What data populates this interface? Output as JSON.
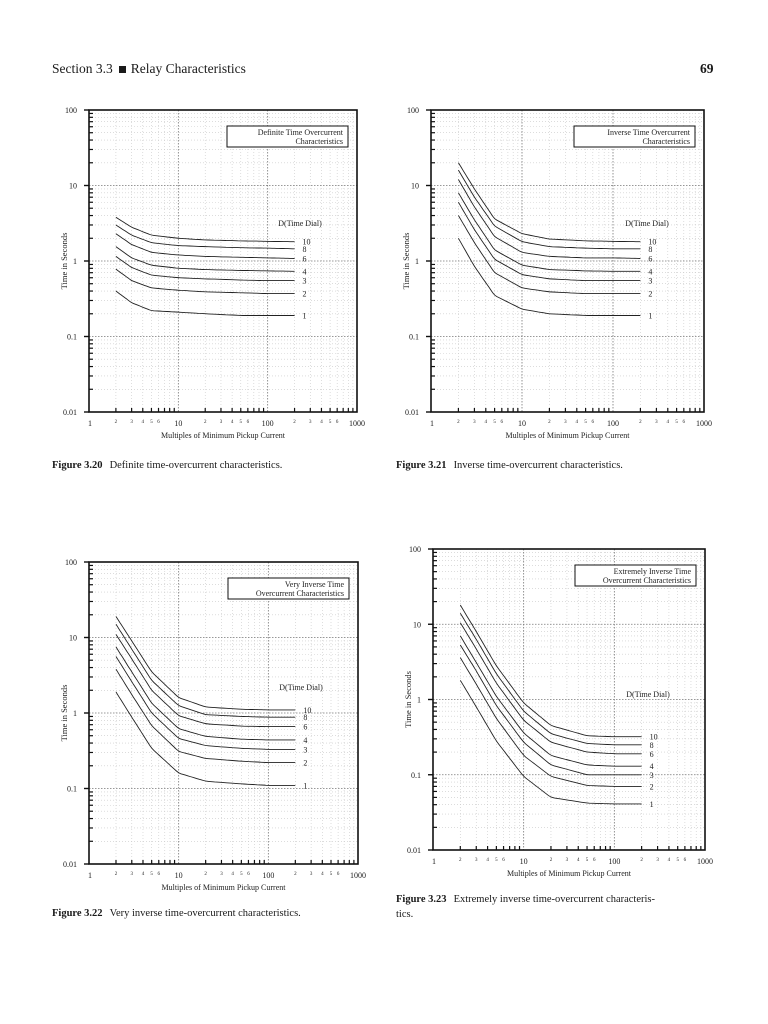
{
  "page": {
    "section": "Section 3.3",
    "section_title": "Relay Characteristics",
    "page_number": "69"
  },
  "captions": [
    {
      "label": "Figure 3.20",
      "text": "Definite time-overcurrent characteristics."
    },
    {
      "label": "Figure 3.21",
      "text": "Inverse time-overcurrent characteristics."
    },
    {
      "label": "Figure 3.22",
      "text": "Very inverse time-overcurrent characteristics."
    },
    {
      "label": "Figure 3.23",
      "text": "Extremely inverse time-overcurrent characteris-",
      "text2": "tics."
    }
  ],
  "chart_data": [
    {
      "type": "line",
      "title": "Definite Time Overcurrent Characteristics",
      "title_lines": [
        "Definite Time Overcurrent",
        "Characteristics"
      ],
      "xlabel": "Multiples of Minimum Pickup Current",
      "ylabel": "Time in Seconds",
      "xscale": "log",
      "yscale": "log",
      "xlim": [
        1,
        1000
      ],
      "ylim": [
        0.01,
        100
      ],
      "x_tick_labels": [
        "1",
        "10",
        "100",
        "1000"
      ],
      "x_minor_labels": [
        "2",
        "3",
        "4",
        "5",
        "6"
      ],
      "y_tick_labels": [
        "0.01",
        "0.1",
        "1",
        "10",
        "100"
      ],
      "grid": true,
      "legend_title": "D(Time Dial)",
      "x": [
        2,
        3,
        5,
        10,
        20,
        50,
        100,
        200
      ],
      "series": [
        {
          "name": "10",
          "values": [
            3.8,
            2.8,
            2.2,
            2.0,
            1.9,
            1.85,
            1.82,
            1.8
          ]
        },
        {
          "name": "8",
          "values": [
            3.0,
            2.2,
            1.75,
            1.6,
            1.55,
            1.5,
            1.48,
            1.45
          ]
        },
        {
          "name": "6",
          "values": [
            2.3,
            1.65,
            1.3,
            1.2,
            1.15,
            1.12,
            1.1,
            1.08
          ]
        },
        {
          "name": "4",
          "values": [
            1.55,
            1.1,
            0.88,
            0.8,
            0.77,
            0.75,
            0.74,
            0.73
          ]
        },
        {
          "name": "3",
          "values": [
            1.15,
            0.82,
            0.65,
            0.6,
            0.58,
            0.56,
            0.55,
            0.55
          ]
        },
        {
          "name": "2",
          "values": [
            0.78,
            0.55,
            0.44,
            0.41,
            0.39,
            0.38,
            0.37,
            0.37
          ]
        },
        {
          "name": "1",
          "values": [
            0.4,
            0.28,
            0.22,
            0.21,
            0.2,
            0.19,
            0.19,
            0.19
          ]
        }
      ]
    },
    {
      "type": "line",
      "title": "Inverse Time Overcurrent Characteristics",
      "title_lines": [
        "Inverse Time Overcurrent",
        "Characteristics"
      ],
      "xlabel": "Multiples of Minimum Pickup Current",
      "ylabel": "Time in Seconds",
      "xscale": "log",
      "yscale": "log",
      "xlim": [
        1,
        1000
      ],
      "ylim": [
        0.01,
        100
      ],
      "x_tick_labels": [
        "1",
        "10",
        "100",
        "1000"
      ],
      "x_minor_labels": [
        "2",
        "3",
        "4",
        "5",
        "6"
      ],
      "y_tick_labels": [
        "0.01",
        "0.1",
        "1",
        "10",
        "100"
      ],
      "grid": true,
      "legend_title": "D(Time Dial)",
      "x": [
        2,
        3,
        5,
        10,
        20,
        50,
        100,
        200
      ],
      "series": [
        {
          "name": "10",
          "values": [
            20,
            9,
            3.6,
            2.3,
            1.95,
            1.85,
            1.82,
            1.8
          ]
        },
        {
          "name": "8",
          "values": [
            16,
            7,
            2.9,
            1.8,
            1.55,
            1.48,
            1.45,
            1.45
          ]
        },
        {
          "name": "6",
          "values": [
            12,
            5.2,
            2.1,
            1.3,
            1.15,
            1.1,
            1.1,
            1.08
          ]
        },
        {
          "name": "4",
          "values": [
            8,
            3.5,
            1.4,
            0.88,
            0.77,
            0.74,
            0.73,
            0.73
          ]
        },
        {
          "name": "3",
          "values": [
            6,
            2.6,
            1.05,
            0.66,
            0.58,
            0.55,
            0.55,
            0.55
          ]
        },
        {
          "name": "2",
          "values": [
            4,
            1.75,
            0.7,
            0.44,
            0.39,
            0.37,
            0.37,
            0.37
          ]
        },
        {
          "name": "1",
          "values": [
            2,
            0.85,
            0.35,
            0.23,
            0.2,
            0.19,
            0.19,
            0.19
          ]
        }
      ]
    },
    {
      "type": "line",
      "title": "Very Inverse Time Overcurrent Characteristics",
      "title_lines": [
        "Very Inverse Time",
        "Overcurrent Characteristics"
      ],
      "xlabel": "Multiples of Minimum Pickup Current",
      "ylabel": "Time in Seconds",
      "xscale": "log",
      "yscale": "log",
      "xlim": [
        1,
        1000
      ],
      "ylim": [
        0.01,
        100
      ],
      "x_tick_labels": [
        "1",
        "10",
        "100",
        "1000"
      ],
      "x_minor_labels": [
        "2",
        "3",
        "4",
        "5",
        "6"
      ],
      "y_tick_labels": [
        "0.01",
        "0.1",
        "1",
        "10",
        "100"
      ],
      "grid": true,
      "legend_title": "D(Time Dial)",
      "x": [
        2,
        3,
        5,
        10,
        20,
        50,
        100,
        200
      ],
      "series": [
        {
          "name": "10",
          "values": [
            19,
            9,
            3.5,
            1.6,
            1.2,
            1.12,
            1.1,
            1.1
          ]
        },
        {
          "name": "8",
          "values": [
            15,
            7,
            2.7,
            1.25,
            0.95,
            0.9,
            0.88,
            0.88
          ]
        },
        {
          "name": "6",
          "values": [
            11,
            5.2,
            2.0,
            0.92,
            0.72,
            0.67,
            0.66,
            0.66
          ]
        },
        {
          "name": "4",
          "values": [
            7.5,
            3.5,
            1.35,
            0.62,
            0.49,
            0.45,
            0.44,
            0.44
          ]
        },
        {
          "name": "3",
          "values": [
            5.6,
            2.6,
            1.0,
            0.46,
            0.37,
            0.34,
            0.33,
            0.33
          ]
        },
        {
          "name": "2",
          "values": [
            3.8,
            1.75,
            0.68,
            0.31,
            0.25,
            0.23,
            0.22,
            0.22
          ]
        },
        {
          "name": "1",
          "values": [
            1.9,
            0.88,
            0.34,
            0.16,
            0.125,
            0.115,
            0.11,
            0.11
          ]
        }
      ]
    },
    {
      "type": "line",
      "title": "Extremely Inverse Time Overcurrent Characteristics",
      "title_lines": [
        "Extremely Inverse Time",
        "Overcurrent Characteristics"
      ],
      "xlabel": "Multiples of Minimum Pickup Current",
      "ylabel": "Time in Seconds",
      "xscale": "log",
      "yscale": "log",
      "xlim": [
        1,
        1000
      ],
      "ylim": [
        0.01,
        100
      ],
      "x_tick_labels": [
        "1",
        "10",
        "100",
        "1000"
      ],
      "x_minor_labels": [
        "2",
        "3",
        "4",
        "5",
        "6"
      ],
      "y_tick_labels": [
        "0.01",
        "0.1",
        "1",
        "10",
        "100"
      ],
      "grid": true,
      "legend_title": "D(Time Dial)",
      "x": [
        2,
        3,
        5,
        10,
        20,
        50,
        100,
        200
      ],
      "series": [
        {
          "name": "10",
          "values": [
            18,
            8,
            2.8,
            0.9,
            0.45,
            0.33,
            0.32,
            0.32
          ]
        },
        {
          "name": "8",
          "values": [
            14,
            6.3,
            2.2,
            0.7,
            0.35,
            0.26,
            0.25,
            0.25
          ]
        },
        {
          "name": "6",
          "values": [
            10.5,
            4.7,
            1.65,
            0.53,
            0.27,
            0.2,
            0.19,
            0.19
          ]
        },
        {
          "name": "4",
          "values": [
            7,
            3.1,
            1.1,
            0.36,
            0.18,
            0.135,
            0.13,
            0.13
          ]
        },
        {
          "name": "3",
          "values": [
            5.3,
            2.4,
            0.83,
            0.27,
            0.135,
            0.1,
            0.1,
            0.1
          ]
        },
        {
          "name": "2",
          "values": [
            3.6,
            1.6,
            0.56,
            0.18,
            0.095,
            0.072,
            0.07,
            0.07
          ]
        },
        {
          "name": "1",
          "values": [
            1.8,
            0.8,
            0.28,
            0.095,
            0.05,
            0.042,
            0.041,
            0.041
          ]
        }
      ]
    }
  ]
}
